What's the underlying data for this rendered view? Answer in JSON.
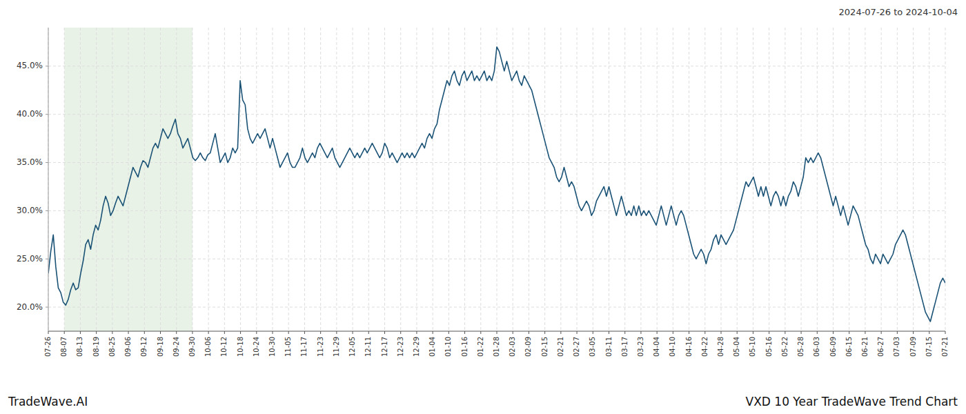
{
  "chart_data": {
    "type": "line",
    "title": "VXD 10 Year TradeWave Trend Chart",
    "subtitle": "2024-07-26 to 2024-10-04",
    "annotations": [
      "TradeWave.AI"
    ],
    "color": "#1a5276",
    "grid": true,
    "shade": {
      "start": "08-07",
      "end": "09-30",
      "color": "#d5e8d4"
    },
    "xlim": [
      0,
      56
    ],
    "xticks": [
      {
        "value": 0,
        "label": "07-26"
      },
      {
        "value": 1,
        "label": "08-07"
      },
      {
        "value": 2,
        "label": "08-13"
      },
      {
        "value": 3,
        "label": "08-19"
      },
      {
        "value": 4,
        "label": "08-25"
      },
      {
        "value": 5,
        "label": "09-06"
      },
      {
        "value": 6,
        "label": "09-12"
      },
      {
        "value": 7,
        "label": "09-18"
      },
      {
        "value": 8,
        "label": "09-24"
      },
      {
        "value": 9,
        "label": "09-30"
      },
      {
        "value": 10,
        "label": "10-06"
      },
      {
        "value": 11,
        "label": "10-12"
      },
      {
        "value": 12,
        "label": "10-18"
      },
      {
        "value": 13,
        "label": "10-24"
      },
      {
        "value": 14,
        "label": "10-30"
      },
      {
        "value": 15,
        "label": "11-05"
      },
      {
        "value": 16,
        "label": "11-17"
      },
      {
        "value": 17,
        "label": "11-23"
      },
      {
        "value": 18,
        "label": "11-29"
      },
      {
        "value": 19,
        "label": "12-05"
      },
      {
        "value": 20,
        "label": "12-11"
      },
      {
        "value": 21,
        "label": "12-17"
      },
      {
        "value": 22,
        "label": "12-23"
      },
      {
        "value": 23,
        "label": "12-29"
      },
      {
        "value": 24,
        "label": "01-04"
      },
      {
        "value": 25,
        "label": "01-10"
      },
      {
        "value": 26,
        "label": "01-16"
      },
      {
        "value": 27,
        "label": "01-22"
      },
      {
        "value": 28,
        "label": "01-28"
      },
      {
        "value": 29,
        "label": "02-03"
      },
      {
        "value": 30,
        "label": "02-09"
      },
      {
        "value": 31,
        "label": "02-15"
      },
      {
        "value": 32,
        "label": "02-21"
      },
      {
        "value": 33,
        "label": "02-27"
      },
      {
        "value": 34,
        "label": "03-05"
      },
      {
        "value": 35,
        "label": "03-11"
      },
      {
        "value": 36,
        "label": "03-17"
      },
      {
        "value": 37,
        "label": "03-23"
      },
      {
        "value": 38,
        "label": "04-04"
      },
      {
        "value": 39,
        "label": "04-10"
      },
      {
        "value": 40,
        "label": "04-16"
      },
      {
        "value": 41,
        "label": "04-22"
      },
      {
        "value": 42,
        "label": "04-28"
      },
      {
        "value": 43,
        "label": "05-04"
      },
      {
        "value": 44,
        "label": "05-10"
      },
      {
        "value": 45,
        "label": "05-16"
      },
      {
        "value": 46,
        "label": "05-22"
      },
      {
        "value": 47,
        "label": "05-28"
      },
      {
        "value": 48,
        "label": "06-03"
      },
      {
        "value": 49,
        "label": "06-09"
      },
      {
        "value": 50,
        "label": "06-15"
      },
      {
        "value": 51,
        "label": "06-21"
      },
      {
        "value": 52,
        "label": "06-27"
      },
      {
        "value": 53,
        "label": "07-03"
      },
      {
        "value": 54,
        "label": "07-09"
      },
      {
        "value": 55,
        "label": "07-15"
      },
      {
        "value": 56,
        "label": "07-21"
      }
    ],
    "ylim": [
      17.5,
      49.0
    ],
    "yticks": [
      {
        "value": 20.0,
        "label": "20.0%"
      },
      {
        "value": 25.0,
        "label": "25.0%"
      },
      {
        "value": 30.0,
        "label": "30.0%"
      },
      {
        "value": 35.0,
        "label": "35.0%"
      },
      {
        "value": 40.0,
        "label": "40.0%"
      },
      {
        "value": 45.0,
        "label": "45.0%"
      }
    ],
    "values": [
      23.5,
      25.8,
      27.5,
      24.2,
      22.0,
      21.5,
      20.5,
      20.2,
      20.8,
      21.8,
      22.5,
      21.8,
      22.0,
      23.5,
      24.8,
      26.5,
      27.0,
      26.0,
      27.5,
      28.5,
      28.0,
      29.0,
      30.5,
      31.5,
      30.8,
      29.5,
      30.0,
      30.8,
      31.5,
      31.0,
      30.5,
      31.5,
      32.5,
      33.5,
      34.5,
      34.0,
      33.5,
      34.5,
      35.2,
      35.0,
      34.5,
      35.5,
      36.5,
      37.0,
      36.5,
      37.5,
      38.5,
      38.0,
      37.5,
      38.0,
      38.8,
      39.5,
      38.0,
      37.5,
      36.5,
      37.0,
      37.5,
      36.5,
      35.5,
      35.2,
      35.5,
      36.0,
      35.5,
      35.2,
      35.8,
      36.0,
      37.0,
      38.0,
      36.5,
      35.0,
      35.5,
      36.0,
      35.0,
      35.5,
      36.5,
      36.0,
      36.5,
      43.5,
      41.5,
      41.0,
      38.5,
      37.5,
      37.0,
      37.5,
      38.0,
      37.5,
      38.0,
      38.5,
      37.5,
      36.5,
      37.5,
      36.5,
      35.5,
      34.5,
      35.0,
      35.5,
      36.0,
      35.0,
      34.5,
      34.5,
      35.0,
      35.5,
      36.5,
      35.5,
      35.0,
      35.5,
      36.0,
      35.5,
      36.5,
      37.0,
      36.5,
      36.0,
      35.5,
      36.0,
      36.5,
      35.5,
      35.0,
      34.5,
      35.0,
      35.5,
      36.0,
      36.5,
      36.0,
      35.5,
      36.0,
      35.5,
      36.0,
      36.5,
      36.0,
      36.5,
      37.0,
      36.5,
      36.0,
      35.5,
      36.0,
      37.0,
      36.5,
      35.5,
      36.0,
      35.5,
      35.0,
      35.5,
      36.0,
      35.5,
      36.0,
      35.5,
      36.0,
      35.5,
      36.0,
      36.5,
      37.0,
      36.5,
      37.5,
      38.0,
      37.5,
      38.5,
      39.0,
      40.5,
      41.5,
      42.5,
      43.5,
      43.0,
      44.0,
      44.5,
      43.5,
      43.0,
      44.0,
      44.5,
      43.5,
      44.0,
      44.5,
      43.5,
      44.0,
      43.5,
      44.0,
      44.5,
      43.5,
      44.0,
      43.5,
      44.5,
      47.0,
      46.5,
      45.5,
      44.5,
      45.5,
      44.5,
      43.5,
      44.0,
      44.5,
      43.5,
      43.0,
      44.0,
      43.5,
      43.0,
      42.5,
      41.5,
      40.5,
      39.5,
      38.5,
      37.5,
      36.5,
      35.5,
      35.0,
      34.5,
      33.5,
      33.0,
      33.5,
      34.5,
      33.5,
      32.5,
      33.0,
      32.5,
      31.5,
      30.5,
      30.0,
      30.5,
      31.0,
      30.5,
      29.5,
      30.0,
      31.0,
      31.5,
      32.0,
      32.5,
      31.5,
      32.5,
      31.5,
      30.5,
      29.5,
      30.5,
      31.5,
      30.5,
      29.5,
      30.0,
      29.5,
      30.5,
      29.5,
      30.5,
      29.5,
      30.0,
      29.5,
      30.0,
      29.5,
      29.0,
      28.5,
      29.5,
      30.5,
      29.5,
      28.5,
      29.5,
      30.5,
      29.5,
      28.5,
      29.5,
      30.0,
      29.5,
      28.5,
      27.5,
      26.5,
      25.5,
      25.0,
      25.5,
      26.0,
      25.5,
      24.5,
      25.5,
      26.0,
      27.0,
      27.5,
      26.5,
      27.5,
      27.0,
      26.5,
      27.0,
      27.5,
      28.0,
      29.0,
      30.0,
      31.0,
      32.0,
      33.0,
      32.5,
      33.0,
      33.5,
      32.5,
      31.5,
      32.5,
      31.5,
      32.5,
      31.5,
      30.5,
      31.5,
      32.0,
      31.5,
      30.5,
      31.5,
      30.5,
      31.5,
      32.0,
      33.0,
      32.5,
      31.5,
      32.5,
      33.5,
      35.5,
      35.0,
      35.5,
      35.0,
      35.5,
      36.0,
      35.5,
      34.5,
      33.5,
      32.5,
      31.5,
      30.5,
      31.5,
      30.5,
      29.5,
      30.5,
      29.5,
      28.5,
      29.5,
      30.5,
      30.0,
      29.5,
      28.5,
      27.5,
      26.5,
      26.0,
      25.0,
      24.5,
      25.5,
      25.0,
      24.5,
      25.5,
      25.0,
      24.5,
      25.0,
      25.5,
      26.5,
      27.0,
      27.5,
      28.0,
      27.5,
      26.5,
      25.5,
      24.5,
      23.5,
      22.5,
      21.5,
      20.5,
      19.5,
      19.0,
      18.5,
      19.5,
      20.5,
      21.5,
      22.5,
      23.0,
      22.5
    ]
  }
}
